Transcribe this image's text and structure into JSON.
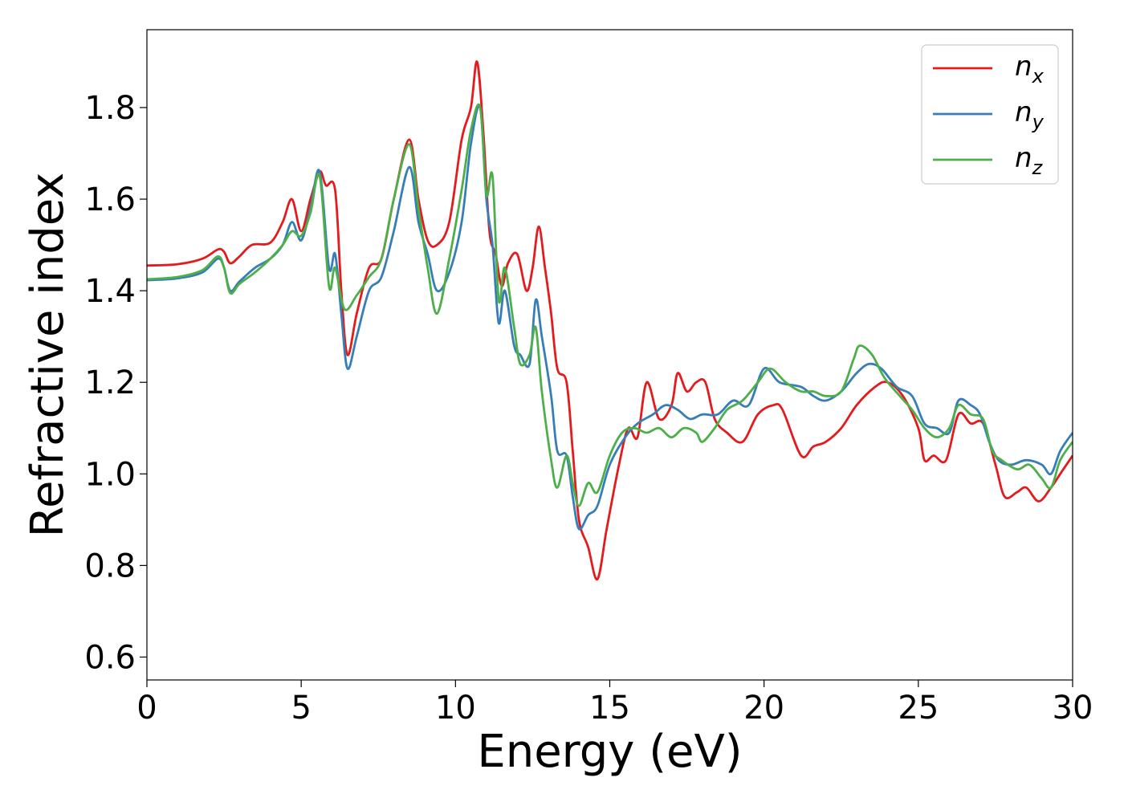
{
  "chart_data": {
    "type": "line",
    "xlabel": "Energy (eV)",
    "ylabel": "Refractive index",
    "xlim": [
      0,
      30
    ],
    "ylim": [
      0.55,
      1.97
    ],
    "xticks": [
      "0",
      "5",
      "10",
      "15",
      "20",
      "25",
      "30"
    ],
    "yticks": [
      "0.6",
      "0.8",
      "1.0",
      "1.2",
      "1.4",
      "1.6",
      "1.8"
    ],
    "grid": false,
    "legend_position": "top-right",
    "series": [
      {
        "name": "n_x",
        "label_main": "n",
        "label_sub": "x",
        "color": "#e41a1c",
        "points": [
          [
            0,
            1.455
          ],
          [
            1,
            1.458
          ],
          [
            1.8,
            1.47
          ],
          [
            2.3,
            1.49
          ],
          [
            2.5,
            1.485
          ],
          [
            2.7,
            1.46
          ],
          [
            3,
            1.475
          ],
          [
            3.4,
            1.5
          ],
          [
            4,
            1.505
          ],
          [
            4.4,
            1.55
          ],
          [
            4.7,
            1.6
          ],
          [
            5,
            1.53
          ],
          [
            5.3,
            1.6
          ],
          [
            5.6,
            1.66
          ],
          [
            5.8,
            1.63
          ],
          [
            6.1,
            1.62
          ],
          [
            6.3,
            1.4
          ],
          [
            6.5,
            1.26
          ],
          [
            6.8,
            1.35
          ],
          [
            7.2,
            1.45
          ],
          [
            7.6,
            1.47
          ],
          [
            8,
            1.6
          ],
          [
            8.5,
            1.73
          ],
          [
            8.8,
            1.6
          ],
          [
            9.1,
            1.51
          ],
          [
            9.4,
            1.5
          ],
          [
            9.8,
            1.55
          ],
          [
            10.2,
            1.73
          ],
          [
            10.5,
            1.8
          ],
          [
            10.7,
            1.9
          ],
          [
            10.9,
            1.75
          ],
          [
            11.1,
            1.53
          ],
          [
            11.3,
            1.48
          ],
          [
            11.5,
            1.41
          ],
          [
            11.7,
            1.46
          ],
          [
            12,
            1.48
          ],
          [
            12.3,
            1.4
          ],
          [
            12.5,
            1.45
          ],
          [
            12.7,
            1.54
          ],
          [
            12.9,
            1.45
          ],
          [
            13.1,
            1.35
          ],
          [
            13.3,
            1.23
          ],
          [
            13.6,
            1.2
          ],
          [
            13.8,
            1.05
          ],
          [
            14,
            0.9
          ],
          [
            14.3,
            0.84
          ],
          [
            14.6,
            0.77
          ],
          [
            14.9,
            0.88
          ],
          [
            15.3,
            1.02
          ],
          [
            15.6,
            1.1
          ],
          [
            15.9,
            1.08
          ],
          [
            16.2,
            1.2
          ],
          [
            16.6,
            1.12
          ],
          [
            17,
            1.15
          ],
          [
            17.2,
            1.22
          ],
          [
            17.5,
            1.18
          ],
          [
            17.8,
            1.2
          ],
          [
            18.1,
            1.2
          ],
          [
            18.4,
            1.12
          ],
          [
            18.8,
            1.09
          ],
          [
            19.3,
            1.07
          ],
          [
            19.8,
            1.13
          ],
          [
            20.3,
            1.15
          ],
          [
            20.6,
            1.14
          ],
          [
            21.2,
            1.04
          ],
          [
            21.6,
            1.06
          ],
          [
            22,
            1.07
          ],
          [
            22.5,
            1.1
          ],
          [
            23,
            1.15
          ],
          [
            23.6,
            1.19
          ],
          [
            24,
            1.2
          ],
          [
            24.5,
            1.17
          ],
          [
            25,
            1.1
          ],
          [
            25.2,
            1.03
          ],
          [
            25.5,
            1.04
          ],
          [
            25.9,
            1.03
          ],
          [
            26.3,
            1.13
          ],
          [
            26.7,
            1.11
          ],
          [
            27.1,
            1.11
          ],
          [
            27.5,
            1.02
          ],
          [
            27.8,
            0.95
          ],
          [
            28.2,
            0.96
          ],
          [
            28.5,
            0.97
          ],
          [
            28.9,
            0.94
          ],
          [
            29.3,
            0.97
          ],
          [
            29.6,
            1.0
          ],
          [
            30,
            1.04
          ]
        ]
      },
      {
        "name": "n_y",
        "label_main": "n",
        "label_sub": "y",
        "color": "#377eb8",
        "points": [
          [
            0,
            1.423
          ],
          [
            1,
            1.427
          ],
          [
            1.8,
            1.44
          ],
          [
            2.3,
            1.47
          ],
          [
            2.5,
            1.45
          ],
          [
            2.7,
            1.4
          ],
          [
            3,
            1.42
          ],
          [
            3.5,
            1.45
          ],
          [
            4,
            1.47
          ],
          [
            4.4,
            1.5
          ],
          [
            4.7,
            1.55
          ],
          [
            5,
            1.51
          ],
          [
            5.3,
            1.58
          ],
          [
            5.6,
            1.66
          ],
          [
            5.9,
            1.45
          ],
          [
            6.1,
            1.48
          ],
          [
            6.3,
            1.35
          ],
          [
            6.5,
            1.23
          ],
          [
            6.8,
            1.3
          ],
          [
            7.2,
            1.4
          ],
          [
            7.6,
            1.43
          ],
          [
            8,
            1.53
          ],
          [
            8.5,
            1.67
          ],
          [
            8.8,
            1.55
          ],
          [
            9.1,
            1.48
          ],
          [
            9.4,
            1.4
          ],
          [
            9.8,
            1.44
          ],
          [
            10.2,
            1.55
          ],
          [
            10.5,
            1.72
          ],
          [
            10.8,
            1.8
          ],
          [
            11,
            1.6
          ],
          [
            11.2,
            1.5
          ],
          [
            11.4,
            1.33
          ],
          [
            11.6,
            1.4
          ],
          [
            11.9,
            1.28
          ],
          [
            12.1,
            1.26
          ],
          [
            12.4,
            1.24
          ],
          [
            12.6,
            1.38
          ],
          [
            12.8,
            1.3
          ],
          [
            13.1,
            1.17
          ],
          [
            13.3,
            1.05
          ],
          [
            13.6,
            1.04
          ],
          [
            13.8,
            0.95
          ],
          [
            14,
            0.88
          ],
          [
            14.3,
            0.91
          ],
          [
            14.6,
            0.93
          ],
          [
            15,
            1.02
          ],
          [
            15.5,
            1.08
          ],
          [
            15.9,
            1.11
          ],
          [
            16.4,
            1.13
          ],
          [
            16.8,
            1.15
          ],
          [
            17.2,
            1.14
          ],
          [
            17.6,
            1.12
          ],
          [
            18,
            1.13
          ],
          [
            18.5,
            1.13
          ],
          [
            19,
            1.16
          ],
          [
            19.5,
            1.15
          ],
          [
            20,
            1.23
          ],
          [
            20.5,
            1.2
          ],
          [
            21.2,
            1.19
          ],
          [
            21.6,
            1.17
          ],
          [
            22,
            1.16
          ],
          [
            22.5,
            1.18
          ],
          [
            23,
            1.22
          ],
          [
            23.4,
            1.24
          ],
          [
            23.8,
            1.23
          ],
          [
            24.3,
            1.19
          ],
          [
            24.8,
            1.17
          ],
          [
            25.2,
            1.11
          ],
          [
            25.6,
            1.1
          ],
          [
            26,
            1.09
          ],
          [
            26.3,
            1.16
          ],
          [
            26.7,
            1.15
          ],
          [
            27,
            1.13
          ],
          [
            27.3,
            1.07
          ],
          [
            27.6,
            1.03
          ],
          [
            28,
            1.02
          ],
          [
            28.5,
            1.03
          ],
          [
            29,
            1.02
          ],
          [
            29.3,
            1.0
          ],
          [
            29.6,
            1.05
          ],
          [
            30,
            1.09
          ]
        ]
      },
      {
        "name": "n_z",
        "label_main": "n",
        "label_sub": "z",
        "color": "#4daf4a",
        "points": [
          [
            0,
            1.425
          ],
          [
            1,
            1.43
          ],
          [
            1.8,
            1.445
          ],
          [
            2.3,
            1.475
          ],
          [
            2.5,
            1.45
          ],
          [
            2.7,
            1.395
          ],
          [
            3,
            1.415
          ],
          [
            3.5,
            1.44
          ],
          [
            4,
            1.47
          ],
          [
            4.4,
            1.5
          ],
          [
            4.7,
            1.53
          ],
          [
            5,
            1.52
          ],
          [
            5.3,
            1.57
          ],
          [
            5.6,
            1.65
          ],
          [
            5.9,
            1.41
          ],
          [
            6.1,
            1.45
          ],
          [
            6.4,
            1.36
          ],
          [
            6.8,
            1.39
          ],
          [
            7.2,
            1.43
          ],
          [
            7.6,
            1.47
          ],
          [
            8,
            1.6
          ],
          [
            8.5,
            1.72
          ],
          [
            8.8,
            1.58
          ],
          [
            9.1,
            1.45
          ],
          [
            9.4,
            1.35
          ],
          [
            9.8,
            1.47
          ],
          [
            10.2,
            1.62
          ],
          [
            10.5,
            1.75
          ],
          [
            10.8,
            1.8
          ],
          [
            11,
            1.61
          ],
          [
            11.2,
            1.65
          ],
          [
            11.4,
            1.38
          ],
          [
            11.6,
            1.45
          ],
          [
            11.9,
            1.32
          ],
          [
            12.1,
            1.24
          ],
          [
            12.4,
            1.26
          ],
          [
            12.6,
            1.32
          ],
          [
            12.8,
            1.18
          ],
          [
            13.1,
            1.03
          ],
          [
            13.3,
            0.97
          ],
          [
            13.6,
            1.04
          ],
          [
            13.8,
            0.98
          ],
          [
            14,
            0.93
          ],
          [
            14.3,
            0.98
          ],
          [
            14.6,
            0.96
          ],
          [
            15,
            1.04
          ],
          [
            15.4,
            1.09
          ],
          [
            15.8,
            1.1
          ],
          [
            16.2,
            1.09
          ],
          [
            16.6,
            1.1
          ],
          [
            17,
            1.08
          ],
          [
            17.4,
            1.1
          ],
          [
            17.8,
            1.09
          ],
          [
            18,
            1.07
          ],
          [
            18.4,
            1.1
          ],
          [
            18.8,
            1.14
          ],
          [
            19.3,
            1.16
          ],
          [
            19.8,
            1.2
          ],
          [
            20.2,
            1.23
          ],
          [
            20.7,
            1.2
          ],
          [
            21.2,
            1.18
          ],
          [
            21.6,
            1.18
          ],
          [
            22,
            1.17
          ],
          [
            22.5,
            1.18
          ],
          [
            22.9,
            1.25
          ],
          [
            23.1,
            1.28
          ],
          [
            23.5,
            1.26
          ],
          [
            23.9,
            1.21
          ],
          [
            24.4,
            1.17
          ],
          [
            24.8,
            1.14
          ],
          [
            25.2,
            1.1
          ],
          [
            25.6,
            1.08
          ],
          [
            26,
            1.1
          ],
          [
            26.3,
            1.15
          ],
          [
            26.7,
            1.13
          ],
          [
            27.1,
            1.12
          ],
          [
            27.4,
            1.05
          ],
          [
            27.7,
            1.03
          ],
          [
            28.2,
            1.01
          ],
          [
            28.6,
            1.02
          ],
          [
            29,
            0.99
          ],
          [
            29.3,
            0.97
          ],
          [
            29.6,
            1.03
          ],
          [
            30,
            1.07
          ]
        ]
      }
    ]
  }
}
